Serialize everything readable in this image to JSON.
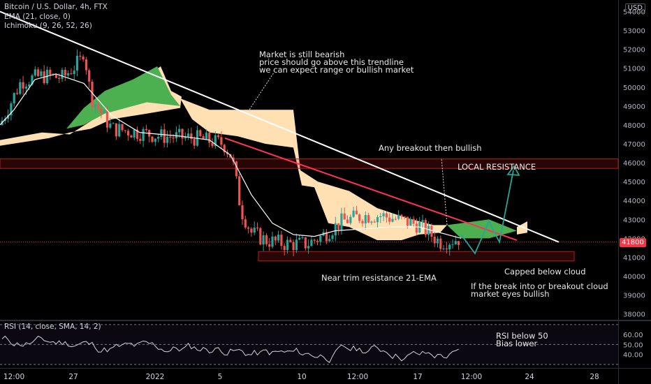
{
  "header": {
    "symbol_line": "Bitcoin / U.S. Dollar, 4h, FTX",
    "currency": "USD",
    "indicators": [
      "EMA (21, close, 0)",
      "Ichimoku (9, 26, 52, 26)"
    ],
    "rsi_label": "RSI (14, close, SMA, 14, 2)"
  },
  "colors": {
    "up": "#26a69a",
    "down": "#ef5350",
    "cloud_bull": "#4caf50",
    "cloud_bear": "#ffe0b2",
    "trendline": "#ffffff",
    "red_trendline": "#ff3355",
    "resistance_zone": "#b71c1c",
    "current_price": "#f23645",
    "breakout_arrow": "#26a69a"
  },
  "chart_data": [
    {
      "type": "candlestick",
      "x_tick_labels": [
        "12:00",
        "27",
        "2022",
        "5",
        "10",
        "12:00",
        "17",
        "12:00",
        "24",
        "28"
      ],
      "y_axis_labels": [
        "54000",
        "53000",
        "52000",
        "51000",
        "50000",
        "49000",
        "48000",
        "47000",
        "46000",
        "45000",
        "44000",
        "43000",
        "42000",
        "41000",
        "40000",
        "39000",
        "38000"
      ],
      "ylim": [
        37800,
        54500
      ],
      "current_price": 41800,
      "current_price_label": "41800",
      "local_resistance": [
        45700,
        46200
      ],
      "support_zone": [
        40800,
        41300
      ],
      "ema21": [
        [
          0,
          48000
        ],
        [
          20,
          48800
        ],
        [
          50,
          50400
        ],
        [
          80,
          50700
        ],
        [
          120,
          50200
        ],
        [
          160,
          48500
        ],
        [
          200,
          47600
        ],
        [
          260,
          47400
        ],
        [
          300,
          47200
        ],
        [
          330,
          46400
        ],
        [
          360,
          44300
        ],
        [
          390,
          42800
        ],
        [
          420,
          42200
        ],
        [
          450,
          42100
        ],
        [
          480,
          42400
        ],
        [
          520,
          42500
        ],
        [
          560,
          42600
        ],
        [
          600,
          42600
        ],
        [
          640,
          42200
        ],
        [
          660,
          42000
        ]
      ],
      "resistance_trendline": [
        [
          0,
          54000
        ],
        [
          800,
          41800
        ]
      ],
      "red_trendline": [
        [
          322,
          47300
        ],
        [
          740,
          41900
        ]
      ],
      "breakout_path": [
        [
          660,
          42200
        ],
        [
          680,
          41200
        ],
        [
          700,
          42900
        ],
        [
          715,
          41800
        ],
        [
          735,
          45600
        ]
      ],
      "candles_seed": 7
    },
    {
      "type": "line",
      "name": "RSI",
      "y_axis_labels": [
        "60.00",
        "50.00",
        "40.00"
      ],
      "ylim": [
        30,
        72
      ],
      "upper_band": 70,
      "lower_band": 30
    }
  ],
  "annotations": {
    "bearish_note": [
      "Market is still bearish",
      "price should go above this trendline",
      "we can expect range or bullish market"
    ],
    "breakout_note": "Any breakout then bullish",
    "local_resistance": "LOCAL RESISTANCE",
    "capped": "Capped below cloud",
    "ema_note": "Near trim resistance 21-EMA",
    "cloud_note": [
      "If the break into or breakout cloud",
      "market eyes bullish"
    ],
    "rsi_note": [
      "RSI below 50",
      "Bias lower"
    ]
  }
}
